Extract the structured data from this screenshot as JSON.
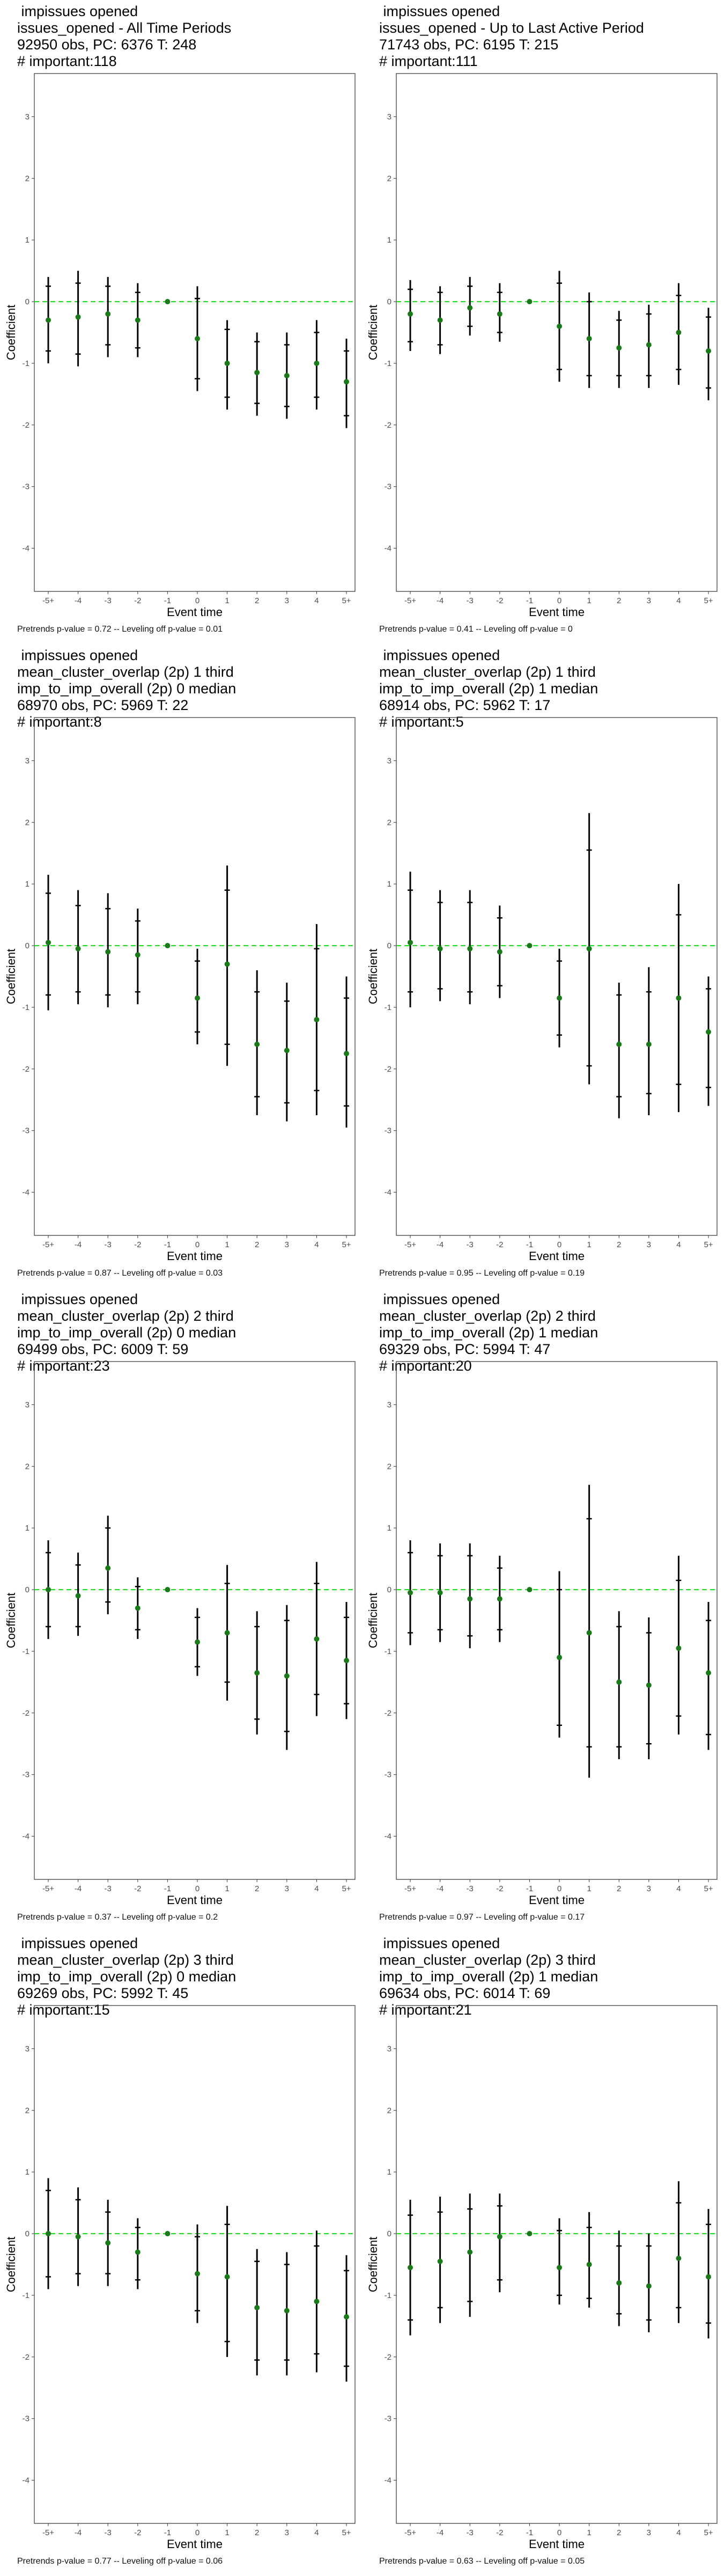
{
  "style": {
    "point_color": "#1a7a1a",
    "zero_line_color": "#22dd22",
    "error_bar_color": "#000000",
    "frame_color": "#333333"
  },
  "chart_data": [
    {
      "type": "scatter",
      "title": " impissues opened\nissues_opened - All Time Periods\n92950 obs, PC: 6376 T: 248\n# important:118",
      "footer": "Pretrends p-value = 0.72 -- Leveling off p-value = 0.01",
      "xlabel": "Event time",
      "ylabel": "Coefficient",
      "categories": [
        "-5+",
        "-4",
        "-3",
        "-2",
        "-1",
        "0",
        "1",
        "2",
        "3",
        "4",
        "5+"
      ],
      "yticks": [
        -4,
        -3,
        -2,
        -1,
        0,
        1,
        2,
        3
      ],
      "ylim": [
        -4.7,
        3.7
      ],
      "grid": false,
      "estimates": [
        -0.3,
        -0.25,
        -0.2,
        -0.3,
        0,
        -0.6,
        -1.0,
        -1.15,
        -1.2,
        -1.0,
        -1.3
      ],
      "ci_outer": [
        [
          -1.0,
          0.4
        ],
        [
          -1.05,
          0.5
        ],
        [
          -0.9,
          0.4
        ],
        [
          -0.9,
          0.3
        ],
        [
          0,
          0
        ],
        [
          -1.45,
          0.25
        ],
        [
          -1.75,
          -0.3
        ],
        [
          -1.85,
          -0.5
        ],
        [
          -1.9,
          -0.5
        ],
        [
          -1.75,
          -0.3
        ],
        [
          -2.05,
          -0.6
        ]
      ],
      "ci_inner": [
        [
          -0.8,
          0.25
        ],
        [
          -0.85,
          0.3
        ],
        [
          -0.7,
          0.25
        ],
        [
          -0.75,
          0.15
        ],
        [
          0,
          0
        ],
        [
          -1.25,
          0.05
        ],
        [
          -1.55,
          -0.45
        ],
        [
          -1.65,
          -0.65
        ],
        [
          -1.7,
          -0.7
        ],
        [
          -1.55,
          -0.5
        ],
        [
          -1.85,
          -0.8
        ]
      ]
    },
    {
      "type": "scatter",
      "title": " impissues opened\nissues_opened - Up to Last Active Period\n71743 obs, PC: 6195 T: 215\n# important:111",
      "footer": "Pretrends p-value = 0.41 -- Leveling off p-value = 0",
      "xlabel": "Event time",
      "ylabel": "Coefficient",
      "categories": [
        "-5+",
        "-4",
        "-3",
        "-2",
        "-1",
        "0",
        "1",
        "2",
        "3",
        "4",
        "5+"
      ],
      "yticks": [
        -4,
        -3,
        -2,
        -1,
        0,
        1,
        2,
        3
      ],
      "ylim": [
        -4.7,
        3.7
      ],
      "grid": false,
      "estimates": [
        -0.2,
        -0.3,
        -0.1,
        -0.2,
        0,
        -0.4,
        -0.6,
        -0.75,
        -0.7,
        -0.5,
        -0.8
      ],
      "ci_outer": [
        [
          -0.8,
          0.35
        ],
        [
          -0.85,
          0.25
        ],
        [
          -0.55,
          0.4
        ],
        [
          -0.65,
          0.3
        ],
        [
          0,
          0
        ],
        [
          -1.3,
          0.5
        ],
        [
          -1.4,
          0.15
        ],
        [
          -1.4,
          -0.15
        ],
        [
          -1.4,
          -0.05
        ],
        [
          -1.35,
          0.3
        ],
        [
          -1.6,
          -0.1
        ]
      ],
      "ci_inner": [
        [
          -0.65,
          0.2
        ],
        [
          -0.7,
          0.15
        ],
        [
          -0.4,
          0.25
        ],
        [
          -0.5,
          0.15
        ],
        [
          0,
          0
        ],
        [
          -1.1,
          0.3
        ],
        [
          -1.2,
          0.0
        ],
        [
          -1.2,
          -0.3
        ],
        [
          -1.2,
          -0.2
        ],
        [
          -1.1,
          0.1
        ],
        [
          -1.4,
          -0.25
        ]
      ]
    },
    {
      "type": "scatter",
      "title": " impissues opened\nmean_cluster_overlap (2p) 1 third\nimp_to_imp_overall (2p) 0 median\n68970 obs, PC: 5969 T: 22\n# important:8",
      "footer": "Pretrends p-value = 0.87 -- Leveling off p-value = 0.03",
      "xlabel": "Event time",
      "ylabel": "Coefficient",
      "categories": [
        "-5+",
        "-4",
        "-3",
        "-2",
        "-1",
        "0",
        "1",
        "2",
        "3",
        "4",
        "5+"
      ],
      "yticks": [
        -4,
        -3,
        -2,
        -1,
        0,
        1,
        2,
        3
      ],
      "ylim": [
        -4.7,
        3.7
      ],
      "grid": false,
      "estimates": [
        0.05,
        -0.05,
        -0.1,
        -0.15,
        0,
        -0.85,
        -0.3,
        -1.6,
        -1.7,
        -1.2,
        -1.75
      ],
      "ci_outer": [
        [
          -1.05,
          1.15
        ],
        [
          -0.95,
          0.9
        ],
        [
          -1.0,
          0.85
        ],
        [
          -0.95,
          0.6
        ],
        [
          0,
          0
        ],
        [
          -1.6,
          -0.05
        ],
        [
          -1.95,
          1.3
        ],
        [
          -2.75,
          -0.4
        ],
        [
          -2.85,
          -0.6
        ],
        [
          -2.75,
          0.35
        ],
        [
          -2.95,
          -0.5
        ]
      ],
      "ci_inner": [
        [
          -0.8,
          0.85
        ],
        [
          -0.75,
          0.65
        ],
        [
          -0.8,
          0.6
        ],
        [
          -0.75,
          0.4
        ],
        [
          0,
          0
        ],
        [
          -1.4,
          -0.25
        ],
        [
          -1.6,
          0.9
        ],
        [
          -2.45,
          -0.75
        ],
        [
          -2.55,
          -0.9
        ],
        [
          -2.35,
          -0.05
        ],
        [
          -2.6,
          -0.85
        ]
      ]
    },
    {
      "type": "scatter",
      "title": " impissues opened\nmean_cluster_overlap (2p) 1 third\nimp_to_imp_overall (2p) 1 median\n68914 obs, PC: 5962 T: 17\n# important:5",
      "footer": "Pretrends p-value = 0.95 -- Leveling off p-value = 0.19",
      "xlabel": "Event time",
      "ylabel": "Coefficient",
      "categories": [
        "-5+",
        "-4",
        "-3",
        "-2",
        "-1",
        "0",
        "1",
        "2",
        "3",
        "4",
        "5+"
      ],
      "yticks": [
        -4,
        -3,
        -2,
        -1,
        0,
        1,
        2,
        3
      ],
      "ylim": [
        -4.7,
        3.7
      ],
      "grid": false,
      "estimates": [
        0.05,
        -0.05,
        -0.05,
        -0.1,
        0,
        -0.85,
        -0.05,
        -1.6,
        -1.6,
        -0.85,
        -1.4
      ],
      "ci_outer": [
        [
          -1.0,
          1.2
        ],
        [
          -0.9,
          0.9
        ],
        [
          -0.95,
          0.9
        ],
        [
          -0.85,
          0.65
        ],
        [
          0,
          0
        ],
        [
          -1.65,
          -0.05
        ],
        [
          -2.25,
          2.15
        ],
        [
          -2.8,
          -0.6
        ],
        [
          -2.75,
          -0.35
        ],
        [
          -2.7,
          1.0
        ],
        [
          -2.6,
          -0.5
        ]
      ],
      "ci_inner": [
        [
          -0.75,
          0.9
        ],
        [
          -0.7,
          0.7
        ],
        [
          -0.75,
          0.7
        ],
        [
          -0.65,
          0.45
        ],
        [
          0,
          0
        ],
        [
          -1.45,
          -0.25
        ],
        [
          -1.95,
          1.55
        ],
        [
          -2.45,
          -0.8
        ],
        [
          -2.4,
          -0.75
        ],
        [
          -2.25,
          0.5
        ],
        [
          -2.3,
          -0.7
        ]
      ]
    },
    {
      "type": "scatter",
      "title": " impissues opened\nmean_cluster_overlap (2p) 2 third\nimp_to_imp_overall (2p) 0 median\n69499 obs, PC: 6009 T: 59\n# important:23",
      "footer": "Pretrends p-value = 0.37 -- Leveling off p-value = 0.2",
      "xlabel": "Event time",
      "ylabel": "Coefficient",
      "categories": [
        "-5+",
        "-4",
        "-3",
        "-2",
        "-1",
        "0",
        "1",
        "2",
        "3",
        "4",
        "5+"
      ],
      "yticks": [
        -4,
        -3,
        -2,
        -1,
        0,
        1,
        2,
        3
      ],
      "ylim": [
        -4.7,
        3.7
      ],
      "grid": false,
      "estimates": [
        0.0,
        -0.1,
        0.35,
        -0.3,
        0,
        -0.85,
        -0.7,
        -1.35,
        -1.4,
        -0.8,
        -1.15
      ],
      "ci_outer": [
        [
          -0.8,
          0.8
        ],
        [
          -0.75,
          0.6
        ],
        [
          -0.4,
          1.2
        ],
        [
          -0.8,
          0.2
        ],
        [
          0,
          0
        ],
        [
          -1.4,
          -0.3
        ],
        [
          -1.8,
          0.4
        ],
        [
          -2.35,
          -0.35
        ],
        [
          -2.6,
          -0.25
        ],
        [
          -2.05,
          0.45
        ],
        [
          -2.1,
          -0.2
        ]
      ],
      "ci_inner": [
        [
          -0.6,
          0.6
        ],
        [
          -0.6,
          0.4
        ],
        [
          -0.2,
          1.0
        ],
        [
          -0.65,
          0.05
        ],
        [
          0,
          0
        ],
        [
          -1.25,
          -0.45
        ],
        [
          -1.5,
          0.1
        ],
        [
          -2.1,
          -0.6
        ],
        [
          -2.3,
          -0.5
        ],
        [
          -1.7,
          0.1
        ],
        [
          -1.85,
          -0.45
        ]
      ]
    },
    {
      "type": "scatter",
      "title": " impissues opened\nmean_cluster_overlap (2p) 2 third\nimp_to_imp_overall (2p) 1 median\n69329 obs, PC: 5994 T: 47\n# important:20",
      "footer": "Pretrends p-value = 0.97 -- Leveling off p-value = 0.17",
      "xlabel": "Event time",
      "ylabel": "Coefficient",
      "categories": [
        "-5+",
        "-4",
        "-3",
        "-2",
        "-1",
        "0",
        "1",
        "2",
        "3",
        "4",
        "5+"
      ],
      "yticks": [
        -4,
        -3,
        -2,
        -1,
        0,
        1,
        2,
        3
      ],
      "ylim": [
        -4.7,
        3.7
      ],
      "grid": false,
      "estimates": [
        -0.05,
        -0.05,
        -0.15,
        -0.15,
        0,
        -1.1,
        -0.7,
        -1.5,
        -1.55,
        -0.95,
        -1.35
      ],
      "ci_outer": [
        [
          -0.9,
          0.8
        ],
        [
          -0.85,
          0.75
        ],
        [
          -0.95,
          0.75
        ],
        [
          -0.85,
          0.55
        ],
        [
          0,
          0
        ],
        [
          -2.4,
          0.3
        ],
        [
          -3.05,
          1.7
        ],
        [
          -2.75,
          -0.35
        ],
        [
          -2.75,
          -0.45
        ],
        [
          -2.35,
          0.55
        ],
        [
          -2.6,
          -0.2
        ]
      ],
      "ci_inner": [
        [
          -0.7,
          0.6
        ],
        [
          -0.65,
          0.55
        ],
        [
          -0.75,
          0.55
        ],
        [
          -0.65,
          0.35
        ],
        [
          0,
          0
        ],
        [
          -2.2,
          0.0
        ],
        [
          -2.55,
          1.15
        ],
        [
          -2.55,
          -0.6
        ],
        [
          -2.5,
          -0.7
        ],
        [
          -2.05,
          0.15
        ],
        [
          -2.35,
          -0.5
        ]
      ]
    },
    {
      "type": "scatter",
      "title": " impissues opened\nmean_cluster_overlap (2p) 3 third\nimp_to_imp_overall (2p) 0 median\n69269 obs, PC: 5992 T: 45\n# important:15",
      "footer": "Pretrends p-value = 0.77 -- Leveling off p-value = 0.06",
      "xlabel": "Event time",
      "ylabel": "Coefficient",
      "categories": [
        "-5+",
        "-4",
        "-3",
        "-2",
        "-1",
        "0",
        "1",
        "2",
        "3",
        "4",
        "5+"
      ],
      "yticks": [
        -4,
        -3,
        -2,
        -1,
        0,
        1,
        2,
        3
      ],
      "ylim": [
        -4.7,
        3.7
      ],
      "grid": false,
      "estimates": [
        0.0,
        -0.05,
        -0.15,
        -0.3,
        0,
        -0.65,
        -0.7,
        -1.2,
        -1.25,
        -1.1,
        -1.35
      ],
      "ci_outer": [
        [
          -0.9,
          0.9
        ],
        [
          -0.85,
          0.75
        ],
        [
          -0.85,
          0.55
        ],
        [
          -0.9,
          0.25
        ],
        [
          0,
          0
        ],
        [
          -1.45,
          0.15
        ],
        [
          -2.0,
          0.45
        ],
        [
          -2.3,
          -0.25
        ],
        [
          -2.3,
          -0.3
        ],
        [
          -2.25,
          0.05
        ],
        [
          -2.4,
          -0.35
        ]
      ],
      "ci_inner": [
        [
          -0.7,
          0.7
        ],
        [
          -0.65,
          0.55
        ],
        [
          -0.65,
          0.35
        ],
        [
          -0.75,
          0.1
        ],
        [
          0,
          0
        ],
        [
          -1.25,
          -0.05
        ],
        [
          -1.75,
          0.15
        ],
        [
          -2.05,
          -0.45
        ],
        [
          -2.05,
          -0.5
        ],
        [
          -1.95,
          -0.2
        ],
        [
          -2.15,
          -0.6
        ]
      ]
    },
    {
      "type": "scatter",
      "title": " impissues opened\nmean_cluster_overlap (2p) 3 third\nimp_to_imp_overall (2p) 1 median\n69634 obs, PC: 6014 T: 69\n# important:21",
      "footer": "Pretrends p-value = 0.63 -- Leveling off p-value = 0.05",
      "xlabel": "Event time",
      "ylabel": "Coefficient",
      "categories": [
        "-5+",
        "-4",
        "-3",
        "-2",
        "-1",
        "0",
        "1",
        "2",
        "3",
        "4",
        "5+"
      ],
      "yticks": [
        -4,
        -3,
        -2,
        -1,
        0,
        1,
        2,
        3
      ],
      "ylim": [
        -4.7,
        3.7
      ],
      "grid": false,
      "estimates": [
        -0.55,
        -0.45,
        -0.3,
        -0.05,
        0,
        -0.55,
        -0.5,
        -0.8,
        -0.85,
        -0.4,
        -0.7
      ],
      "ci_outer": [
        [
          -1.65,
          0.55
        ],
        [
          -1.45,
          0.6
        ],
        [
          -1.35,
          0.65
        ],
        [
          -0.95,
          0.65
        ],
        [
          0,
          0
        ],
        [
          -1.15,
          0.25
        ],
        [
          -1.2,
          0.35
        ],
        [
          -1.5,
          0.05
        ],
        [
          -1.6,
          0.0
        ],
        [
          -1.45,
          0.85
        ],
        [
          -1.7,
          0.4
        ]
      ],
      "ci_inner": [
        [
          -1.4,
          0.3
        ],
        [
          -1.2,
          0.35
        ],
        [
          -1.1,
          0.4
        ],
        [
          -0.75,
          0.45
        ],
        [
          0,
          0
        ],
        [
          -1.0,
          0.05
        ],
        [
          -1.05,
          0.1
        ],
        [
          -1.3,
          -0.2
        ],
        [
          -1.4,
          -0.2
        ],
        [
          -1.2,
          0.5
        ],
        [
          -1.45,
          0.15
        ]
      ]
    }
  ]
}
